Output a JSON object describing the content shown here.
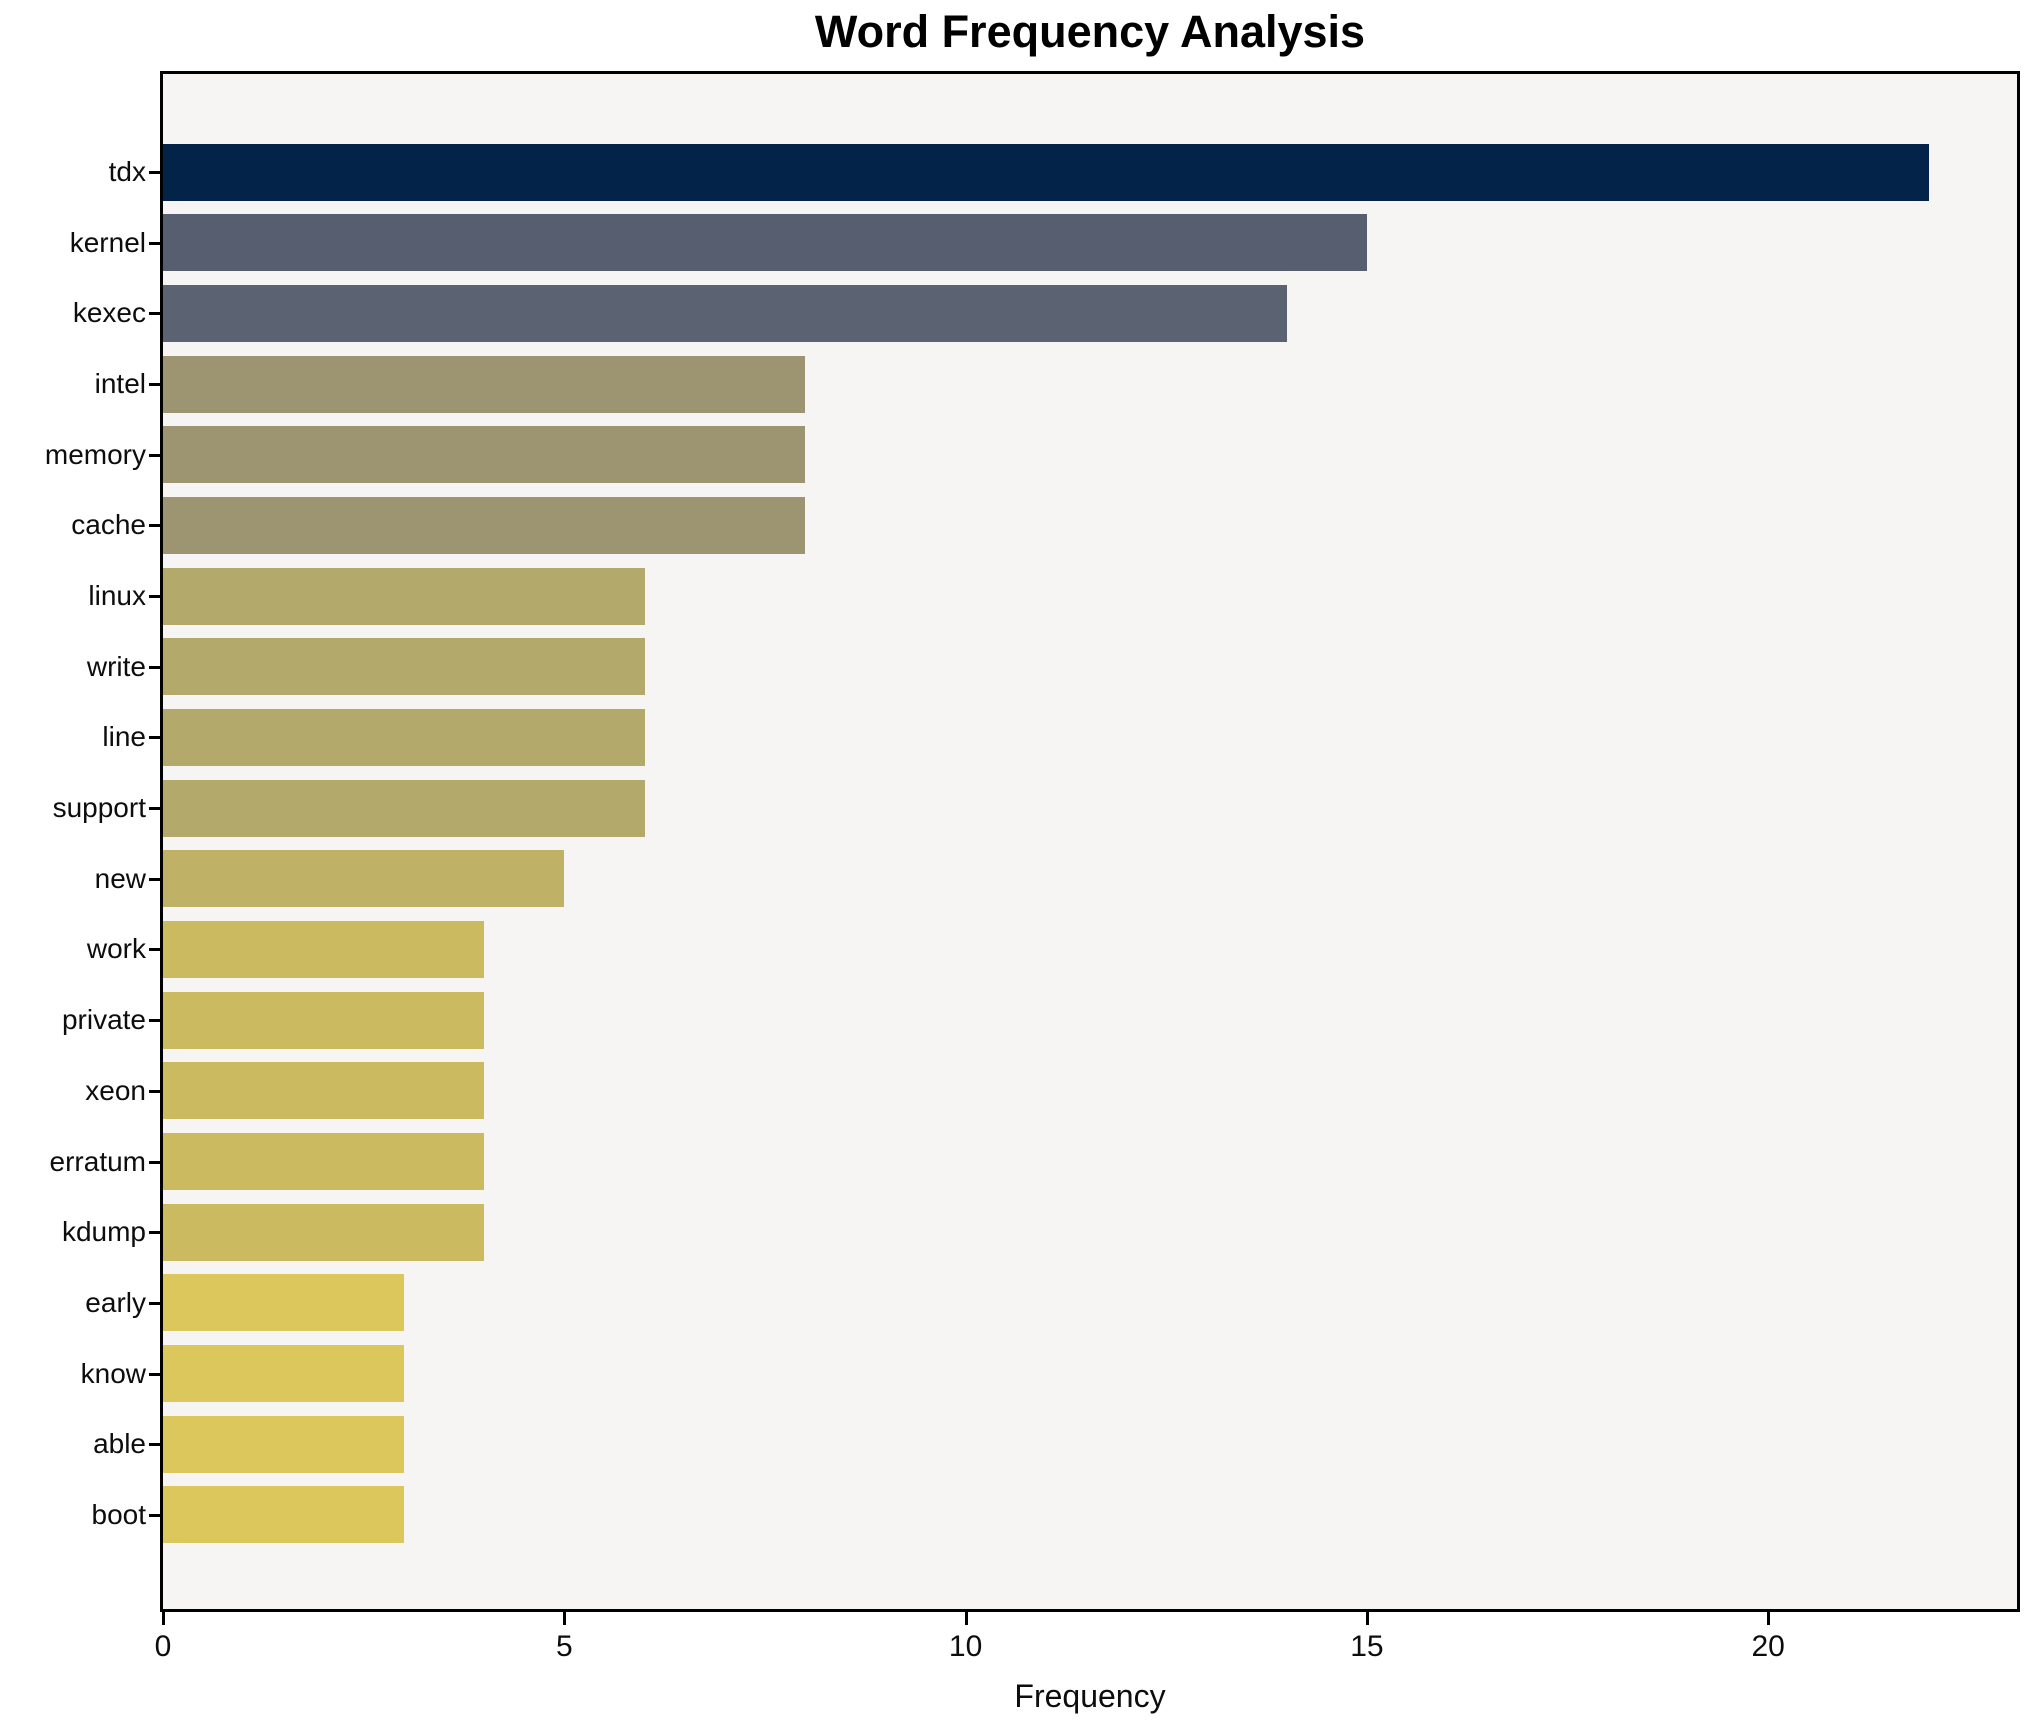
{
  "chart_data": {
    "type": "bar",
    "orientation": "horizontal",
    "title": "Word Frequency Analysis",
    "xlabel": "Frequency",
    "ylabel": "",
    "categories": [
      "tdx",
      "kernel",
      "kexec",
      "intel",
      "memory",
      "cache",
      "linux",
      "write",
      "line",
      "support",
      "new",
      "work",
      "private",
      "xeon",
      "erratum",
      "kdump",
      "early",
      "know",
      "able",
      "boot"
    ],
    "values": [
      22,
      15,
      14,
      8,
      8,
      8,
      6,
      6,
      6,
      6,
      5,
      4,
      4,
      4,
      4,
      4,
      3,
      3,
      3,
      3
    ],
    "bar_colors": [
      "#032349",
      "#565E70",
      "#5B6271",
      "#9D9572",
      "#9D9572",
      "#9D9572",
      "#B2A96B",
      "#B2A96B",
      "#B2A96B",
      "#B2A96B",
      "#BFB266",
      "#CBBA5F",
      "#CBBA5F",
      "#CBBA5F",
      "#CBBA5F",
      "#CBBA5F",
      "#DBC75B",
      "#DBC75B",
      "#DBC75B",
      "#DBC75B"
    ],
    "xticks": [
      0,
      5,
      10,
      15,
      20
    ],
    "xlim": [
      0,
      23.1
    ],
    "grid": false,
    "legend": null,
    "plot_bg": "#F6F5F3",
    "figure_bg": "#FFFFFF",
    "spine_color": "#000000"
  }
}
